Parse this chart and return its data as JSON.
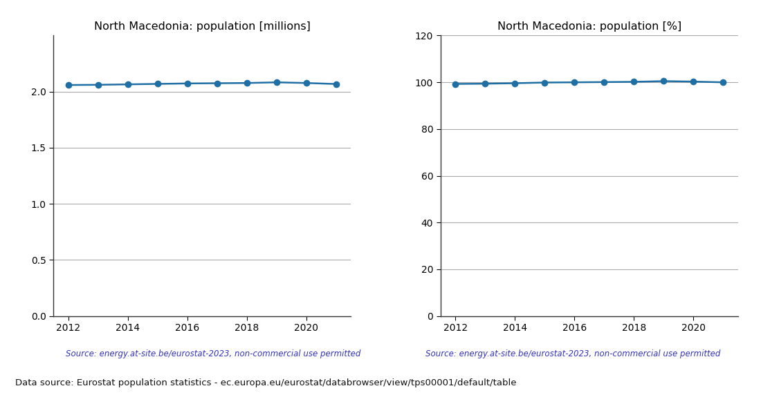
{
  "years": [
    2012,
    2013,
    2014,
    2015,
    2016,
    2017,
    2018,
    2019,
    2020,
    2021
  ],
  "pop_millions": [
    2.059,
    2.061,
    2.065,
    2.069,
    2.073,
    2.075,
    2.077,
    2.083,
    2.077,
    2.068
  ],
  "pop_percent": [
    99.3,
    99.4,
    99.6,
    99.9,
    100.0,
    100.1,
    100.2,
    100.5,
    100.3,
    100.0
  ],
  "title_millions": "North Macedonia: population [millions]",
  "title_percent": "North Macedonia: population [%]",
  "source_text": "Source: energy.at-site.be/eurostat-2023, non-commercial use permitted",
  "footer_text": "Data source: Eurostat population statistics - ec.europa.eu/eurostat/databrowser/view/tps00001/default/table",
  "line_color": "#1f6fa4",
  "source_color": "#3333bb",
  "footer_color": "#111111",
  "ylim_millions": [
    0.0,
    2.5
  ],
  "ylim_percent": [
    0,
    120
  ],
  "yticks_millions": [
    0.0,
    0.5,
    1.0,
    1.5,
    2.0
  ],
  "yticks_percent": [
    0,
    20,
    40,
    60,
    80,
    100,
    120
  ],
  "xticks": [
    2012,
    2014,
    2016,
    2018,
    2020
  ],
  "grid_color": "#aaaaaa",
  "background_color": "#ffffff"
}
